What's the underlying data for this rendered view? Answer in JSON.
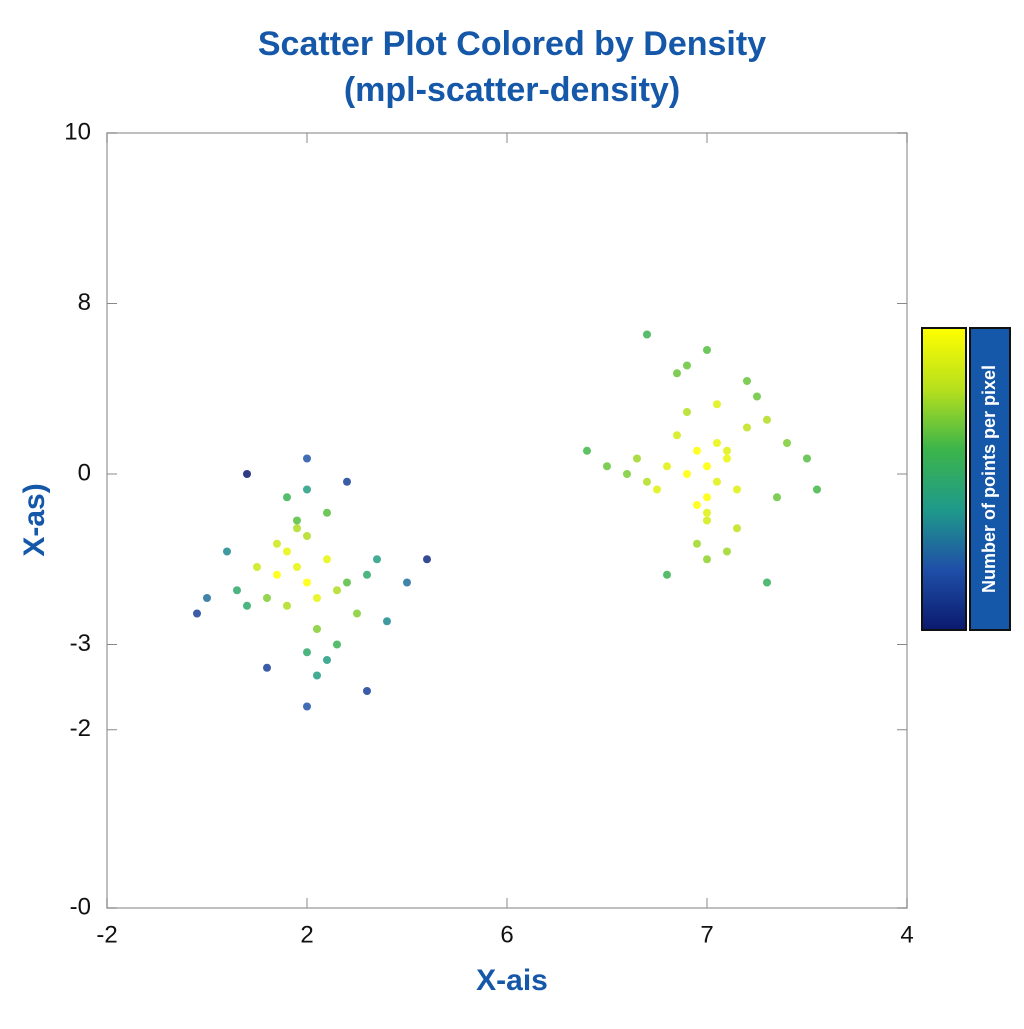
{
  "chart_data": {
    "type": "scatter",
    "title": "Scatter Plot Colored by Density",
    "subtitle": "(mpl-scatter-density)",
    "x_label": "X-ais",
    "y_label": "X-as)",
    "colorbar_label": "Number of points per pixel",
    "colormap": [
      "#0b1a6e",
      "#1f4fa8",
      "#1f9a8a",
      "#3cb54a",
      "#b8e01c",
      "#ffff00"
    ],
    "xlim": [
      0,
      8
    ],
    "xticks": [
      {
        "value": 0,
        "label": "-2"
      },
      {
        "value": 2,
        "label": "2"
      },
      {
        "value": 4,
        "label": "6"
      },
      {
        "value": 6,
        "label": "7"
      },
      {
        "value": 8,
        "label": "4"
      }
    ],
    "ylim": [
      0,
      10
    ],
    "yticks": [
      10,
      {
        "value": 7.8,
        "label": "8"
      },
      {
        "value": 5.6,
        "label": "0"
      },
      {
        "value": 3.4,
        "label": "-3"
      },
      {
        "value": 2.3,
        "label": "-2"
      },
      {
        "value": 0,
        "label": "-0"
      }
    ],
    "series": [
      {
        "x": [
          2.0,
          2.1,
          1.9,
          2.2,
          1.8,
          2.0,
          2.3,
          1.7,
          2.1,
          1.9,
          2.4,
          1.6,
          2.0,
          2.2,
          1.8,
          2.5,
          1.5,
          2.0,
          2.6,
          1.4,
          2.1,
          1.9,
          2.7,
          1.3,
          2.3,
          1.7,
          2.8,
          1.2,
          2.0,
          2.0,
          3.0,
          1.0,
          2.4,
          1.6,
          2.2,
          1.8,
          3.2,
          0.9,
          2.6,
          1.4
        ],
        "y": [
          4.2,
          4.0,
          4.4,
          4.5,
          3.9,
          4.8,
          4.1,
          4.3,
          3.6,
          4.9,
          4.2,
          4.0,
          3.3,
          5.1,
          4.6,
          3.8,
          4.4,
          5.4,
          4.3,
          3.9,
          3.0,
          5.0,
          4.5,
          4.1,
          3.4,
          4.7,
          3.7,
          4.6,
          5.8,
          2.6,
          4.2,
          4.0,
          5.5,
          3.1,
          3.2,
          5.3,
          4.5,
          3.8,
          2.8,
          5.6
        ]
      },
      {
        "x": [
          6.0,
          5.9,
          6.1,
          6.2,
          5.8,
          6.0,
          5.7,
          6.3,
          6.1,
          5.9,
          5.6,
          6.4,
          6.0,
          5.8,
          6.2,
          5.5,
          6.5,
          6.0,
          5.4,
          6.6,
          5.9,
          6.1,
          5.3,
          6.7,
          5.7,
          6.3,
          5.2,
          6.8,
          6.0,
          6.0,
          5.0,
          7.0,
          5.6,
          6.4,
          5.8,
          6.2,
          4.8,
          7.1,
          5.4,
          6.6
        ],
        "y": [
          5.7,
          5.9,
          5.5,
          5.8,
          5.6,
          5.3,
          6.1,
          5.4,
          6.0,
          5.2,
          5.7,
          6.2,
          5.0,
          6.4,
          5.9,
          5.4,
          6.6,
          5.1,
          5.5,
          6.3,
          4.7,
          6.5,
          5.8,
          5.3,
          6.9,
          4.9,
          5.6,
          6.0,
          7.2,
          4.5,
          5.7,
          5.8,
          4.3,
          6.8,
          7.0,
          4.6,
          5.9,
          5.4,
          7.4,
          4.2
        ]
      }
    ]
  }
}
